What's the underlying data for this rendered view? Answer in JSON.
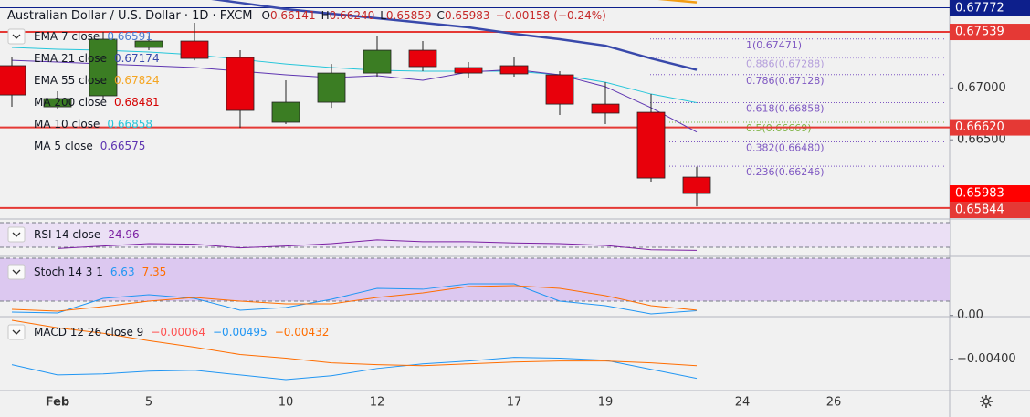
{
  "chart_data": [
    {
      "type": "candlestick",
      "title": "Australian Dollar / U.S. Dollar · 1D · FXCM",
      "ohlc": [
        {
          "key": "O",
          "value": 0.66141
        },
        {
          "key": "H",
          "value": 0.6624,
          "label": "0.66240"
        },
        {
          "key": "L",
          "value": 0.65859
        },
        {
          "key": "C",
          "value": 0.65983
        }
      ],
      "change": {
        "value": -0.00158,
        "label": "−0.00158"
      },
      "change_pct": {
        "value": -0.24,
        "label": "(−0.24%)"
      },
      "categories": [
        null,
        "Feb",
        null,
        "5",
        null,
        null,
        "10",
        null,
        "12",
        null,
        null,
        "17",
        null,
        "19",
        null,
        null,
        "24",
        null,
        "26",
        null,
        null
      ],
      "open": [
        0.67214,
        0.66818,
        0.66924,
        0.6739,
        0.67451,
        0.67293,
        0.66669,
        0.66862,
        0.67143,
        0.67363,
        0.67196,
        0.67214,
        0.67126,
        0.66844,
        0.66765,
        0.66141,
        null,
        null,
        null,
        null,
        null
      ],
      "high": [
        0.67293,
        0.66968,
        0.67539,
        0.67495,
        0.67627,
        0.67363,
        0.67073,
        0.67231,
        0.67495,
        0.67451,
        0.67249,
        0.67302,
        0.67161,
        0.67055,
        0.66941,
        0.6624,
        null,
        null,
        null,
        null,
        null
      ],
      "low": [
        0.66818,
        0.66792,
        0.66897,
        0.67363,
        0.67266,
        0.66616,
        0.66651,
        0.66809,
        0.67108,
        0.67161,
        0.67091,
        0.67108,
        0.66739,
        0.66651,
        0.66097,
        0.65859,
        null,
        null,
        null,
        null,
        null
      ],
      "close": [
        0.66932,
        0.66897,
        0.67469,
        0.67451,
        0.67284,
        0.66783,
        0.66862,
        0.67143,
        0.67363,
        0.67205,
        0.67143,
        0.67135,
        0.66844,
        0.66757,
        0.66132,
        0.65983,
        null,
        null,
        null,
        null,
        null
      ],
      "up_color": "#3b7d23",
      "down_color": "#e8000b",
      "ylim": [
        0.65737,
        0.67847
      ],
      "yticks": [
        {
          "value": 0.67,
          "label": "0.67000"
        },
        {
          "value": 0.665,
          "label": "0.66500"
        }
      ],
      "price_lines": [
        {
          "value": 0.67772,
          "color": "#0d1f8c",
          "line": true
        },
        {
          "value": 0.67539,
          "color": "#e53935",
          "line": true
        },
        {
          "value": 0.6662,
          "label": "0.66620",
          "color": "#e53935",
          "line": true
        },
        {
          "value": 0.65983,
          "color": "#ff0000",
          "line": false
        },
        {
          "value": 0.65844,
          "color": "#e53935",
          "line": true
        }
      ],
      "fib": [
        {
          "value": 0.67471,
          "label": "1(0.67471)",
          "color": "#7e57c2"
        },
        {
          "value": 0.67288,
          "label": "0.886(0.67288)",
          "color": "#b39ddb"
        },
        {
          "value": 0.67128,
          "label": "0.786(0.67128)",
          "color": "#7e57c2"
        },
        {
          "value": 0.66858,
          "label": "0.618(0.66858)",
          "color": "#7e57c2"
        },
        {
          "value": 0.66669,
          "label": "0.5(0.66669)",
          "color": "#7cb342"
        },
        {
          "value": 0.6648,
          "label": "0.382(0.66480)",
          "color": "#7e57c2"
        },
        {
          "value": 0.66246,
          "label": "0.236(0.66246)",
          "color": "#7e57c2"
        }
      ],
      "legend": [
        {
          "title": "EMA 7 close",
          "values": [
            {
              "value": 0.66591,
              "color": "#4a7bd0"
            }
          ]
        },
        {
          "title": "EMA 21 close",
          "values": [
            {
              "value": 0.67174,
              "color": "#3949ab"
            }
          ]
        },
        {
          "title": "EMA 55 close",
          "values": [
            {
              "value": 0.67824,
              "color": "#f5a623"
            }
          ]
        },
        {
          "title": "MA 200 close",
          "values": [
            {
              "value": 0.68481,
              "color": "#d50000"
            }
          ]
        },
        {
          "title": "MA 10 close",
          "values": [
            {
              "value": 0.66858,
              "color": "#26c6da"
            }
          ]
        },
        {
          "title": "MA 5 close",
          "values": [
            {
              "value": 0.66575,
              "color": "#5e35b1"
            }
          ]
        }
      ],
      "series": [
        {
          "color": "#3949ab",
          "width": 2.5,
          "values": [
            null,
            null,
            null,
            null,
            0.6788,
            0.6782,
            0.67759,
            0.67715,
            0.67671,
            0.67627,
            0.67583,
            0.67521,
            0.67469,
            0.67407,
            0.67284,
            0.67174,
            null,
            null,
            null,
            null,
            null
          ]
        },
        {
          "color": "#f39c12",
          "width": 2.5,
          "values": [
            null,
            null,
            null,
            null,
            null,
            null,
            null,
            null,
            null,
            null,
            null,
            null,
            null,
            null,
            0.67864,
            0.67824,
            null,
            null,
            null,
            null,
            null
          ]
        },
        {
          "color": "#26c6da",
          "width": 1,
          "values": [
            0.6739,
            0.67372,
            0.67363,
            0.67346,
            0.67319,
            0.67275,
            0.67231,
            0.67196,
            0.6717,
            0.67161,
            0.67161,
            0.67161,
            0.67126,
            0.67055,
            0.66941,
            0.66858,
            null,
            null,
            null,
            null,
            null
          ]
        },
        {
          "color": "#5e35b1",
          "width": 1,
          "values": [
            0.67266,
            0.67249,
            0.67231,
            0.67214,
            0.67196,
            0.67161,
            0.67126,
            0.67099,
            0.67117,
            0.67073,
            0.67152,
            0.67178,
            0.67126,
            0.67012,
            0.66809,
            0.66575,
            null,
            null,
            null,
            null,
            null
          ]
        }
      ]
    },
    {
      "type": "line",
      "legend": [
        {
          "title": "RSI 14 close",
          "values": [
            {
              "value": 24.96,
              "color": "#7b1fa2"
            }
          ]
        }
      ],
      "ylim": [
        15.2,
        75.9
      ],
      "bands": [
        30,
        70
      ],
      "band_color": "#ebe0f5",
      "series": [
        {
          "color": "#7b1fa2",
          "width": 1,
          "values": [
            null,
            28,
            32,
            36,
            35,
            29,
            32,
            36,
            42,
            39,
            39,
            37,
            36,
            33,
            26,
            24.96,
            null,
            null,
            null,
            null,
            null
          ]
        }
      ]
    },
    {
      "type": "line",
      "legend": [
        {
          "title": "Stoch 14 3 1",
          "values": [
            {
              "value": 6.63,
              "color": "#2196f3"
            },
            {
              "value": 7.35,
              "color": "#ff6d00"
            }
          ]
        }
      ],
      "ylim": [
        -1.66,
        82.55
      ],
      "bands": [
        20,
        80
      ],
      "band_color": "#dcc8f0",
      "yticks": [
        {
          "value": 0,
          "label": "0.00"
        }
      ],
      "series": [
        {
          "color": "#2196f3",
          "width": 1,
          "values": [
            4.7,
            3.4,
            23.9,
            29,
            23.9,
            7.3,
            11.1,
            22.6,
            37.9,
            36.7,
            44.3,
            44.3,
            20,
            13.7,
            2.2,
            6.63,
            null,
            null,
            null,
            null,
            null
          ]
        },
        {
          "color": "#ff6d00",
          "width": 1,
          "values": [
            8.6,
            6,
            12.4,
            20,
            25.2,
            20,
            16.2,
            16.2,
            25.2,
            31.5,
            40.5,
            41.8,
            37.9,
            27.7,
            13.7,
            7.35,
            null,
            null,
            null,
            null,
            null
          ]
        }
      ]
    },
    {
      "type": "line",
      "legend": [
        {
          "title": "MACD 12 26 close 9",
          "values": [
            {
              "value": -0.00064,
              "label": "−0.00064",
              "color": "#ff5252"
            },
            {
              "value": -0.00495,
              "label": "−0.00495",
              "color": "#2196f3"
            },
            {
              "value": -0.00432,
              "label": "−0.00432",
              "color": "#ff6d00"
            }
          ]
        }
      ],
      "ylim": [
        -0.00555,
        -0.0019
      ],
      "yticks": [
        {
          "value": -0.004,
          "label": "−0.00400"
        }
      ],
      "series": [
        {
          "color": "#2196f3",
          "width": 1,
          "values": [
            -0.00427,
            -0.00478,
            -0.00473,
            -0.00459,
            -0.00455,
            -0.00478,
            -0.00501,
            -0.00482,
            -0.00446,
            -0.00423,
            -0.00409,
            -0.00391,
            -0.00395,
            -0.00405,
            -0.0045,
            -0.00495,
            null,
            null,
            null,
            null,
            null
          ]
        },
        {
          "color": "#ff6d00",
          "width": 1,
          "values": [
            -0.00208,
            -0.00245,
            -0.00272,
            -0.00309,
            -0.00341,
            -0.00377,
            -0.00395,
            -0.00418,
            -0.00427,
            -0.00432,
            -0.00423,
            -0.00414,
            -0.00409,
            -0.00409,
            -0.00418,
            -0.00432,
            null,
            null,
            null,
            null,
            null
          ]
        }
      ]
    }
  ]
}
